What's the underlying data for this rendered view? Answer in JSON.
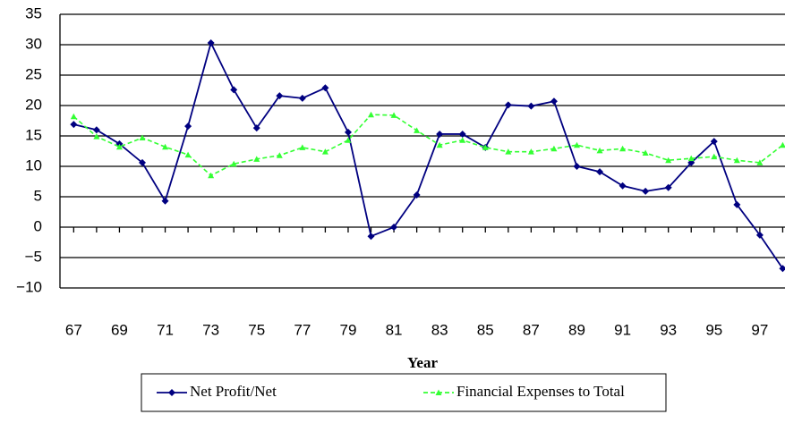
{
  "chart_data": {
    "type": "line",
    "x_label": "Year",
    "x": [
      67,
      68,
      69,
      70,
      71,
      72,
      73,
      74,
      75,
      76,
      77,
      78,
      79,
      80,
      81,
      82,
      83,
      84,
      85,
      86,
      87,
      88,
      89,
      90,
      91,
      92,
      93,
      94,
      95,
      96,
      97,
      98
    ],
    "series": [
      {
        "name": "Net Profit/Net",
        "color": "#000080",
        "marker": "diamond",
        "dash": false,
        "values": [
          16.9,
          16.0,
          13.7,
          10.6,
          4.3,
          16.6,
          30.3,
          22.6,
          16.3,
          21.6,
          21.2,
          22.9,
          15.6,
          -1.5,
          0,
          5.3,
          15.3,
          15.3,
          13.1,
          20.1,
          19.9,
          20.7,
          10.0,
          9.1,
          6.8,
          5.9,
          6.5,
          10.6,
          14.1,
          3.7,
          -1.3,
          -6.8
        ]
      },
      {
        "name": "Financial Expenses to Total",
        "color": "#33ff33",
        "marker": "triangle",
        "dash": true,
        "values": [
          18.2,
          14.9,
          13.2,
          14.7,
          13.2,
          11.9,
          8.5,
          10.4,
          11.2,
          11.8,
          13.1,
          12.4,
          14.3,
          18.5,
          18.4,
          15.9,
          13.5,
          14.3,
          13.1,
          12.4,
          12.4,
          12.9,
          13.5,
          12.6,
          12.9,
          12.2,
          11.0,
          11.3,
          11.6,
          11.0,
          10.6,
          13.5
        ]
      }
    ],
    "xlim": [
      66.4,
      98.1
    ],
    "xticks": [
      67,
      69,
      71,
      73,
      75,
      77,
      79,
      81,
      83,
      85,
      87,
      89,
      91,
      93,
      95,
      97
    ],
    "ylim": [
      -10,
      35
    ],
    "yticks": [
      {
        "value": -10,
        "label": "−10"
      },
      {
        "value": -5,
        "label": "−5"
      },
      0,
      5,
      10,
      15,
      20,
      25,
      30,
      35
    ],
    "grid": true
  }
}
